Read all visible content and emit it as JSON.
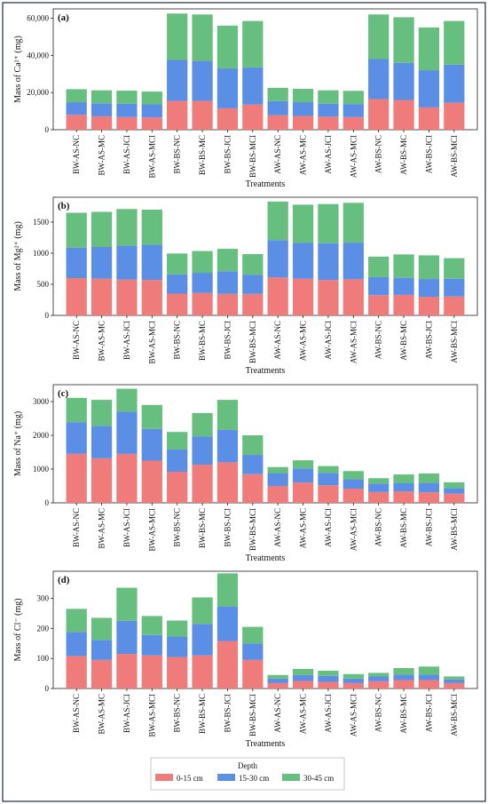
{
  "colors": {
    "0-15": "#f07b7b",
    "15-30": "#5b8fe6",
    "30-45": "#66bf7e"
  },
  "legend": {
    "title": "Depth",
    "entries": [
      "0-15 cm",
      "15-30 cm",
      "30-45 cm"
    ]
  },
  "chart_data": [
    {
      "type": "bar",
      "stacked": true,
      "panel_label": "(a)",
      "ylabel": "Mass of Ca²⁺ (mg)",
      "xlabel": "Treatments",
      "ylim": [
        0,
        65000
      ],
      "yticks": [
        0,
        20000,
        40000,
        60000
      ],
      "ytick_labels": [
        "0",
        "20,000",
        "40,000",
        "60,000"
      ],
      "categories": [
        "BW-AS-NC",
        "BW-AS-MC",
        "BW-AS-JCI",
        "BW-AS-MCI",
        "BW-BS-NC",
        "BW-BS-MC",
        "BW-BS-JCI",
        "BW-BS-MCI",
        "AW-AS-NC",
        "AW-AS-MC",
        "AW-AS-JCI",
        "AW-AS-MCI",
        "AW-BS-NC",
        "AW-BS-MC",
        "AW-BS-JCI",
        "AW-BS-MCI"
      ],
      "series": [
        {
          "name": "0-15 cm",
          "values": [
            8000,
            7200,
            6800,
            6600,
            15500,
            15500,
            11500,
            13500,
            7800,
            7400,
            7000,
            6800,
            16500,
            16000,
            12000,
            14500
          ]
        },
        {
          "name": "15-30 cm",
          "values": [
            6800,
            7000,
            7200,
            7000,
            22000,
            21500,
            21500,
            20000,
            7600,
            7400,
            7000,
            7000,
            21500,
            20000,
            20000,
            20500
          ]
        },
        {
          "name": "30-45 cm",
          "values": [
            7000,
            7000,
            7000,
            6900,
            25000,
            25000,
            23000,
            25000,
            7100,
            7200,
            7200,
            7100,
            24000,
            24500,
            23000,
            23500
          ]
        }
      ]
    },
    {
      "type": "bar",
      "stacked": true,
      "panel_label": "(b)",
      "ylabel": "Mass of Mg²⁺ (mg)",
      "xlabel": "Treatments",
      "ylim": [
        0,
        1900
      ],
      "yticks": [
        0,
        500,
        1000,
        1500
      ],
      "ytick_labels": [
        "0",
        "500",
        "1000",
        "1500"
      ],
      "categories": [
        "BW-AS-NC",
        "BW-AS-MC",
        "BW-AS-JCI",
        "BW-AS-MCI",
        "BW-BS-NC",
        "BW-BS-MC",
        "BW-BS-JCI",
        "BW-BS-MCI",
        "AW-AS-NC",
        "AW-AS-MC",
        "AW-AS-JCI",
        "AW-AS-MCI",
        "AW-BS-NC",
        "AW-BS-MC",
        "AW-BS-JCI",
        "AW-BS-MCI"
      ],
      "series": [
        {
          "name": "0-15 cm",
          "values": [
            600,
            590,
            575,
            570,
            350,
            360,
            345,
            345,
            610,
            590,
            570,
            580,
            325,
            330,
            300,
            305
          ]
        },
        {
          "name": "15-30 cm",
          "values": [
            490,
            510,
            545,
            565,
            310,
            325,
            365,
            310,
            600,
            575,
            590,
            590,
            290,
            275,
            285,
            285
          ]
        },
        {
          "name": "30-45 cm",
          "values": [
            560,
            565,
            590,
            565,
            335,
            350,
            360,
            330,
            620,
            615,
            630,
            640,
            330,
            375,
            380,
            330
          ]
        }
      ]
    },
    {
      "type": "bar",
      "stacked": true,
      "panel_label": "(c)",
      "ylabel": "Mass of Na⁺ (mg)",
      "xlabel": "Treatments",
      "ylim": [
        0,
        3500
      ],
      "yticks": [
        0,
        1000,
        2000,
        3000
      ],
      "ytick_labels": [
        "0",
        "1000",
        "2000",
        "3000"
      ],
      "categories": [
        "BW-AS-NC",
        "BW-AS-MC",
        "BW-AS-JCI",
        "BW-AS-MCI",
        "BW-BS-NC",
        "BW-BS-MC",
        "BW-BS-JCI",
        "BW-BS-MCI",
        "AW-AS-NC",
        "AW-AS-MC",
        "AW-AS-JCI",
        "AW-AS-MCI",
        "AW-BS-NC",
        "AW-BS-MC",
        "AW-BS-JCI",
        "AW-BS-MCI"
      ],
      "series": [
        {
          "name": "0-15 cm",
          "values": [
            1450,
            1320,
            1450,
            1250,
            920,
            1130,
            1200,
            850,
            500,
            600,
            520,
            420,
            320,
            340,
            310,
            270
          ]
        },
        {
          "name": "15-30 cm",
          "values": [
            940,
            960,
            1250,
            940,
            660,
            840,
            960,
            570,
            380,
            420,
            370,
            280,
            250,
            250,
            280,
            170
          ]
        },
        {
          "name": "30-45 cm",
          "values": [
            720,
            770,
            680,
            710,
            520,
            690,
            890,
            580,
            180,
            240,
            200,
            240,
            160,
            250,
            280,
            170
          ]
        }
      ]
    },
    {
      "type": "bar",
      "stacked": true,
      "panel_label": "(d)",
      "ylabel": "Mass of Cl⁻ (mg)",
      "xlabel": "Treatments",
      "ylim": [
        0,
        390
      ],
      "yticks": [
        0,
        100,
        200,
        300
      ],
      "ytick_labels": [
        "0",
        "100",
        "200",
        "300"
      ],
      "categories": [
        "BW-AS-NC",
        "BW-AS-MC",
        "BW-AS-JCI",
        "BW-AS-MCI",
        "BW-BS-NC",
        "BW-BS-MC",
        "BW-BS-JCI",
        "BW-BS-MCI",
        "AW-AS-NC",
        "AW-AS-MC",
        "AW-AS-JCI",
        "AW-AS-MCI",
        "AW-BS-NC",
        "AW-BS-MC",
        "AW-BS-JCI",
        "AW-BS-MCI"
      ],
      "series": [
        {
          "name": "0-15 cm",
          "values": [
            108,
            95,
            115,
            110,
            105,
            110,
            158,
            95,
            18,
            25,
            22,
            18,
            24,
            28,
            28,
            18
          ]
        },
        {
          "name": "15-30 cm",
          "values": [
            80,
            67,
            110,
            68,
            68,
            105,
            115,
            55,
            15,
            20,
            20,
            15,
            16,
            18,
            18,
            12
          ]
        },
        {
          "name": "30-45 cm",
          "values": [
            77,
            73,
            110,
            63,
            53,
            88,
            110,
            55,
            12,
            20,
            17,
            15,
            12,
            22,
            27,
            10
          ]
        }
      ]
    }
  ]
}
